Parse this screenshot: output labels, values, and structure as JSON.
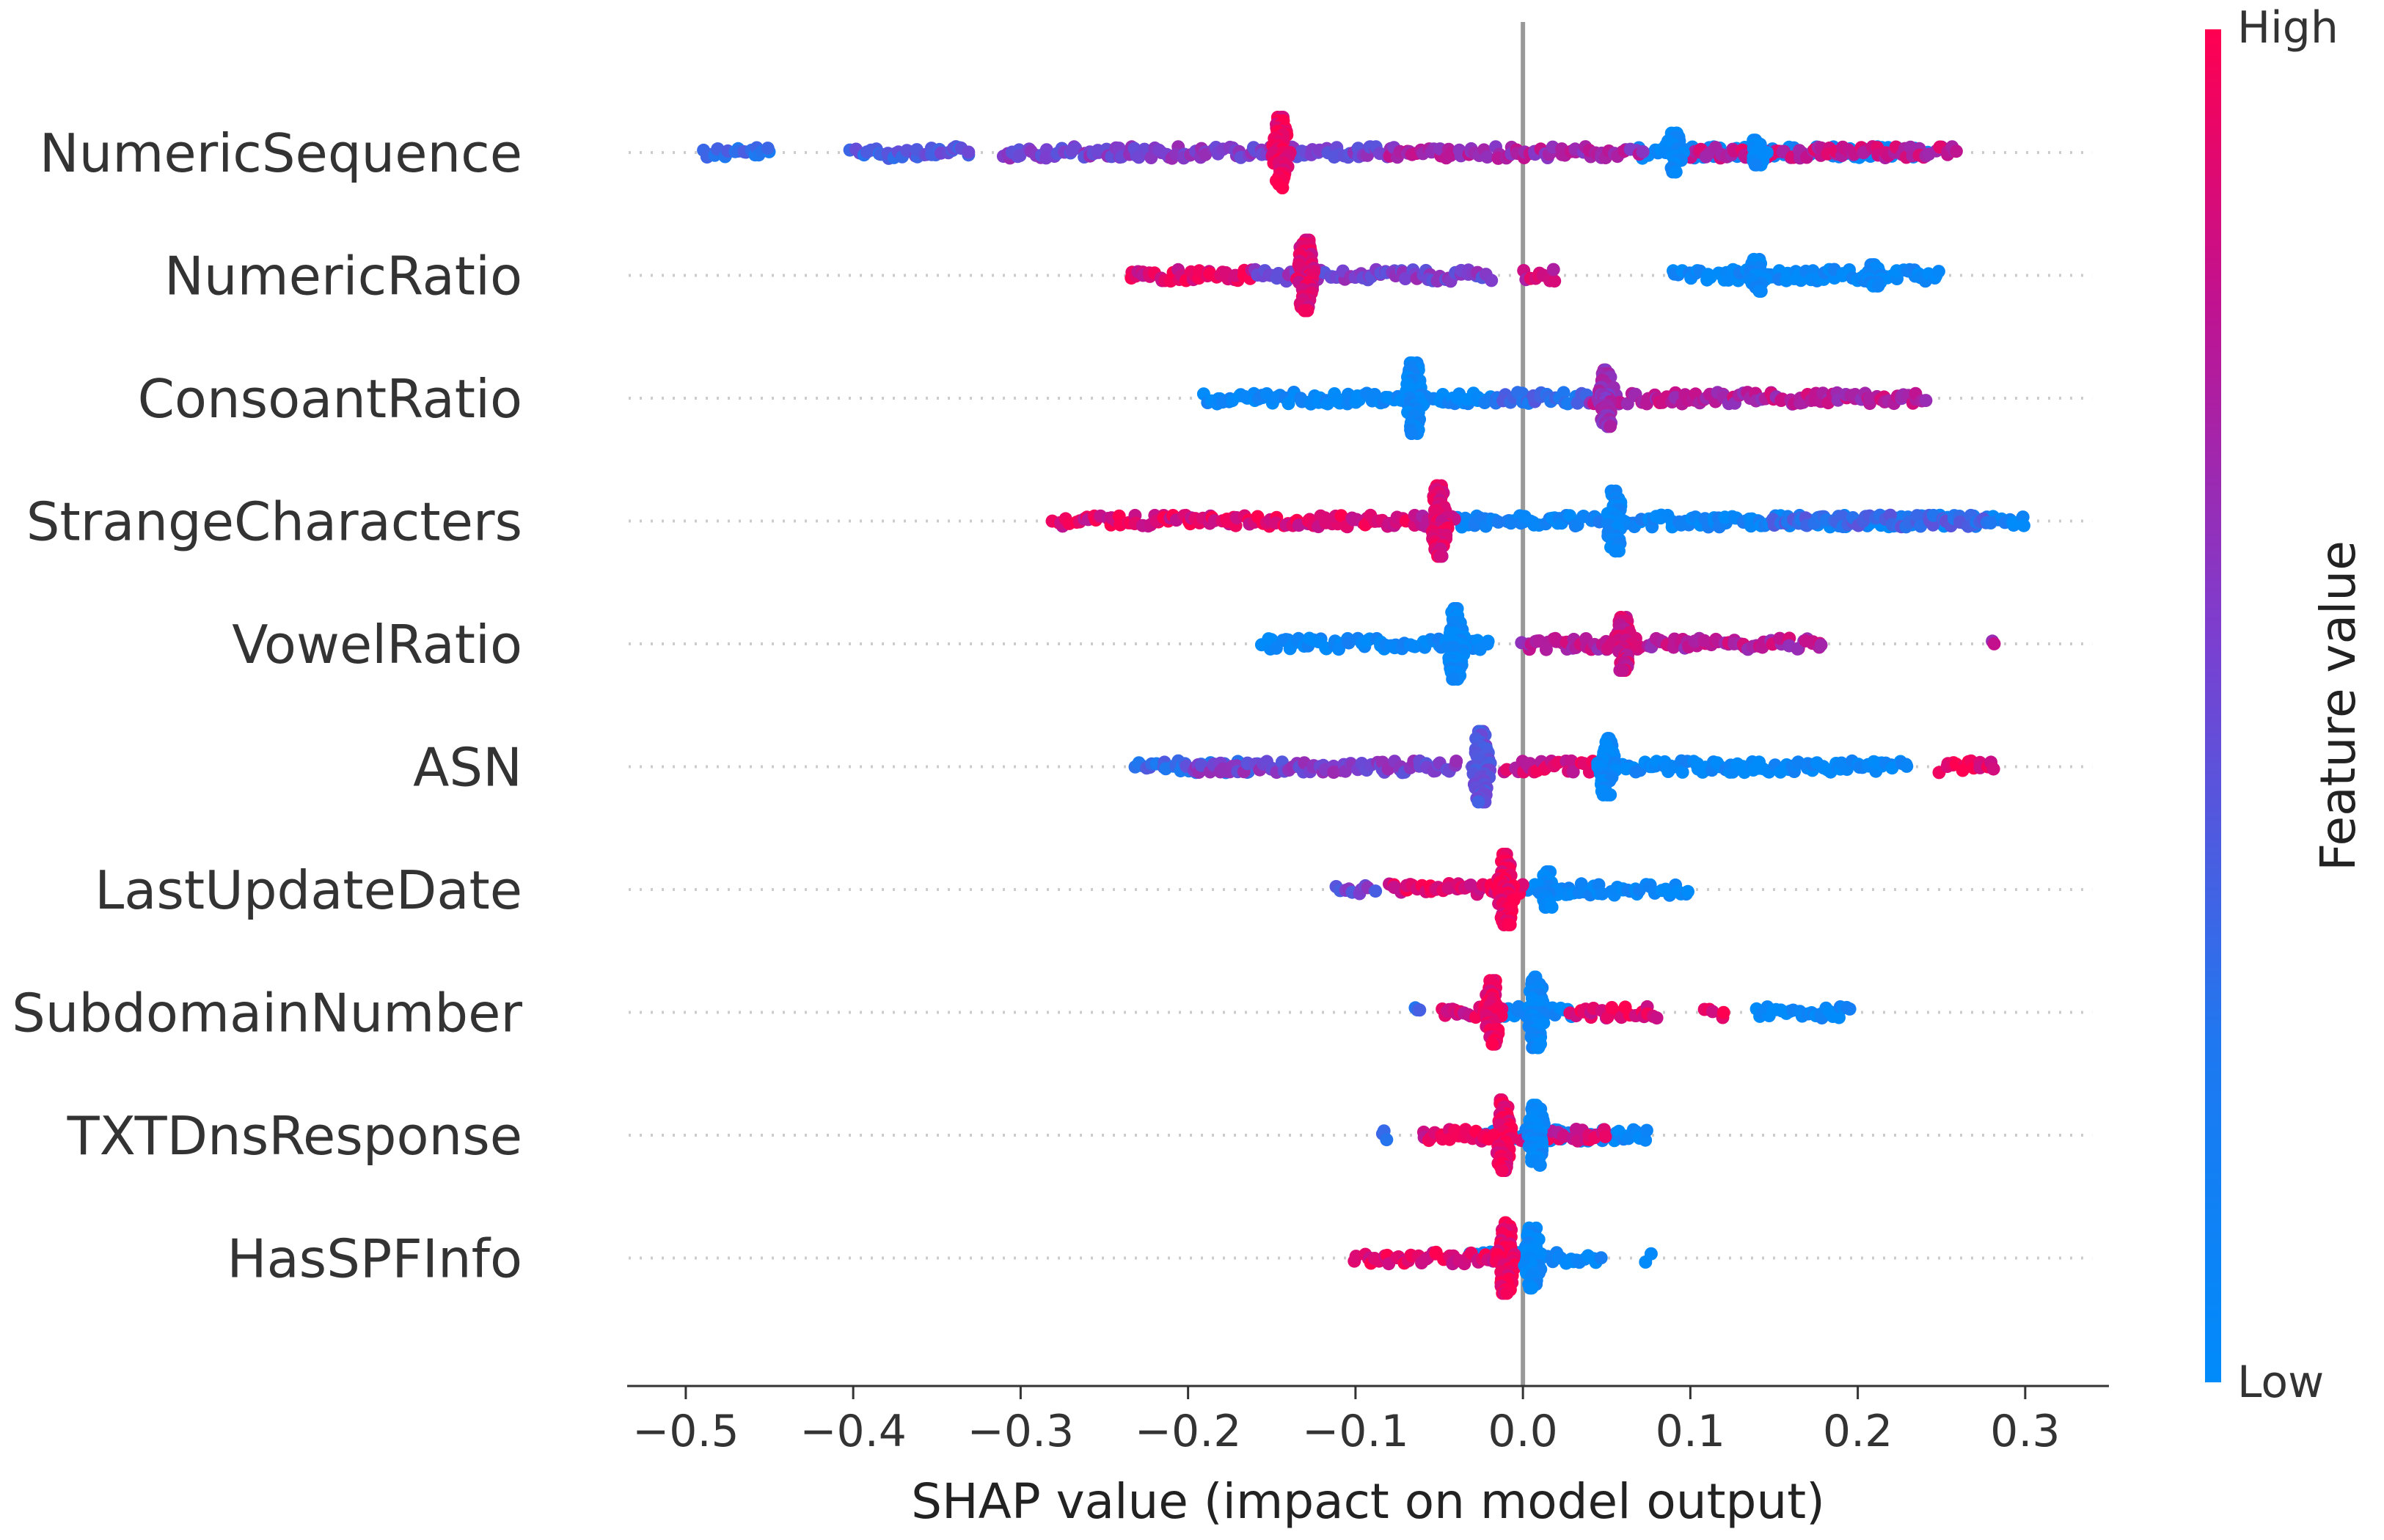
{
  "chart_data": {
    "type": "scatter",
    "subtype": "shap-beeswarm",
    "title": "",
    "xlabel": "SHAP value (impact on model output)",
    "ylabel": "",
    "xlim": [
      -0.535,
      0.35
    ],
    "xticks": [
      -0.5,
      -0.4,
      -0.3,
      -0.2,
      -0.1,
      0.0,
      0.1,
      0.2,
      0.3
    ],
    "xtick_labels": [
      "−0.5",
      "−0.4",
      "−0.3",
      "−0.2",
      "−0.1",
      "0.0",
      "0.1",
      "0.2",
      "0.3"
    ],
    "colorbar": {
      "title": "Feature value",
      "high_label": "High",
      "low_label": "Low",
      "high_color": "#ff0051",
      "mid_color": "#7b3fd0",
      "low_color": "#008bfb"
    },
    "features": [
      {
        "name": "NumericSequence",
        "high_segments": [
          [
            -0.31,
            -0.08,
            0.55
          ],
          [
            -0.08,
            0.07,
            0.7
          ],
          [
            0.1,
            0.26,
            0.8
          ]
        ],
        "low_segments": [
          [
            -0.49,
            -0.45,
            0.3
          ],
          [
            -0.4,
            -0.33,
            0.4
          ],
          [
            0.07,
            0.24,
            0.05
          ]
        ],
        "peaks": [
          {
            "x": -0.145,
            "v": 0.95,
            "h": 1.0
          },
          {
            "x": 0.09,
            "v": 0.05,
            "h": 0.55
          },
          {
            "x": 0.14,
            "v": 0.05,
            "h": 0.35
          }
        ]
      },
      {
        "name": "NumericRatio",
        "high_segments": [
          [
            -0.235,
            -0.16,
            0.9
          ],
          [
            -0.16,
            -0.02,
            0.55
          ],
          [
            0.0,
            0.02,
            0.8
          ]
        ],
        "low_segments": [
          [
            0.09,
            0.25,
            0.05
          ]
        ],
        "peaks": [
          {
            "x": -0.13,
            "v": 0.9,
            "h": 1.0
          },
          {
            "x": 0.14,
            "v": 0.05,
            "h": 0.45
          },
          {
            "x": 0.21,
            "v": 0.05,
            "h": 0.3
          }
        ]
      },
      {
        "name": "ConsoantRatio",
        "high_segments": [
          [
            0.04,
            0.24,
            0.75
          ]
        ],
        "low_segments": [
          [
            -0.19,
            -0.02,
            0.05
          ],
          [
            -0.02,
            0.04,
            0.3
          ]
        ],
        "peaks": [
          {
            "x": -0.065,
            "v": 0.05,
            "h": 1.0
          },
          {
            "x": 0.05,
            "v": 0.65,
            "h": 0.8
          }
        ]
      },
      {
        "name": "StrangeCharacters",
        "high_segments": [
          [
            -0.28,
            -0.06,
            0.9
          ],
          [
            -0.06,
            -0.04,
            0.7
          ]
        ],
        "low_segments": [
          [
            -0.04,
            0.3,
            0.1
          ],
          [
            0.15,
            0.28,
            0.35
          ]
        ],
        "peaks": [
          {
            "x": -0.05,
            "v": 0.9,
            "h": 1.0
          },
          {
            "x": 0.055,
            "v": 0.05,
            "h": 0.85
          }
        ]
      },
      {
        "name": "VowelRatio",
        "high_segments": [
          [
            0.0,
            0.18,
            0.75
          ],
          [
            0.28,
            0.28,
            0.7
          ]
        ],
        "low_segments": [
          [
            -0.155,
            -0.02,
            0.05
          ]
        ],
        "peaks": [
          {
            "x": -0.04,
            "v": 0.05,
            "h": 1.0
          },
          {
            "x": 0.06,
            "v": 0.85,
            "h": 0.75
          }
        ]
      },
      {
        "name": "ASN",
        "high_segments": [
          [
            -0.2,
            -0.04,
            0.55
          ],
          [
            -0.01,
            0.04,
            0.85
          ],
          [
            0.25,
            0.28,
            0.95
          ]
        ],
        "low_segments": [
          [
            -0.23,
            -0.16,
            0.3
          ],
          [
            0.04,
            0.23,
            0.05
          ]
        ],
        "peaks": [
          {
            "x": -0.025,
            "v": 0.45,
            "h": 1.0
          },
          {
            "x": 0.05,
            "v": 0.05,
            "h": 0.8
          }
        ]
      },
      {
        "name": "LastUpdateDate",
        "high_segments": [
          [
            -0.11,
            -0.09,
            0.5
          ],
          [
            -0.08,
            0.0,
            0.9
          ]
        ],
        "low_segments": [
          [
            0.0,
            0.1,
            0.05
          ]
        ],
        "peaks": [
          {
            "x": -0.01,
            "v": 0.95,
            "h": 1.0
          },
          {
            "x": 0.015,
            "v": 0.05,
            "h": 0.5
          }
        ]
      },
      {
        "name": "SubdomainNumber",
        "high_segments": [
          [
            -0.05,
            -0.015,
            0.85
          ],
          [
            0.03,
            0.08,
            0.9
          ],
          [
            0.11,
            0.12,
            0.95
          ]
        ],
        "low_segments": [
          [
            -0.065,
            -0.06,
            0.3
          ],
          [
            -0.015,
            0.03,
            0.05
          ],
          [
            0.14,
            0.195,
            0.05
          ]
        ],
        "peaks": [
          {
            "x": -0.018,
            "v": 0.95,
            "h": 0.9
          },
          {
            "x": 0.008,
            "v": 0.05,
            "h": 1.0
          }
        ]
      },
      {
        "name": "TXTDnsResponse",
        "high_segments": [
          [
            -0.06,
            -0.02,
            0.9
          ],
          [
            0.0,
            0.05,
            0.85
          ]
        ],
        "low_segments": [
          [
            -0.085,
            -0.08,
            0.3
          ],
          [
            -0.03,
            0.075,
            0.05
          ]
        ],
        "peaks": [
          {
            "x": -0.012,
            "v": 0.95,
            "h": 1.0
          },
          {
            "x": 0.008,
            "v": 0.05,
            "h": 0.85
          }
        ]
      },
      {
        "name": "HasSPFInfo",
        "high_segments": [
          [
            -0.1,
            -0.015,
            0.9
          ]
        ],
        "low_segments": [
          [
            -0.03,
            0.045,
            0.05
          ],
          [
            0.075,
            0.075,
            0.05
          ]
        ],
        "peaks": [
          {
            "x": -0.01,
            "v": 0.95,
            "h": 1.0
          },
          {
            "x": 0.006,
            "v": 0.05,
            "h": 0.85
          }
        ]
      }
    ]
  }
}
